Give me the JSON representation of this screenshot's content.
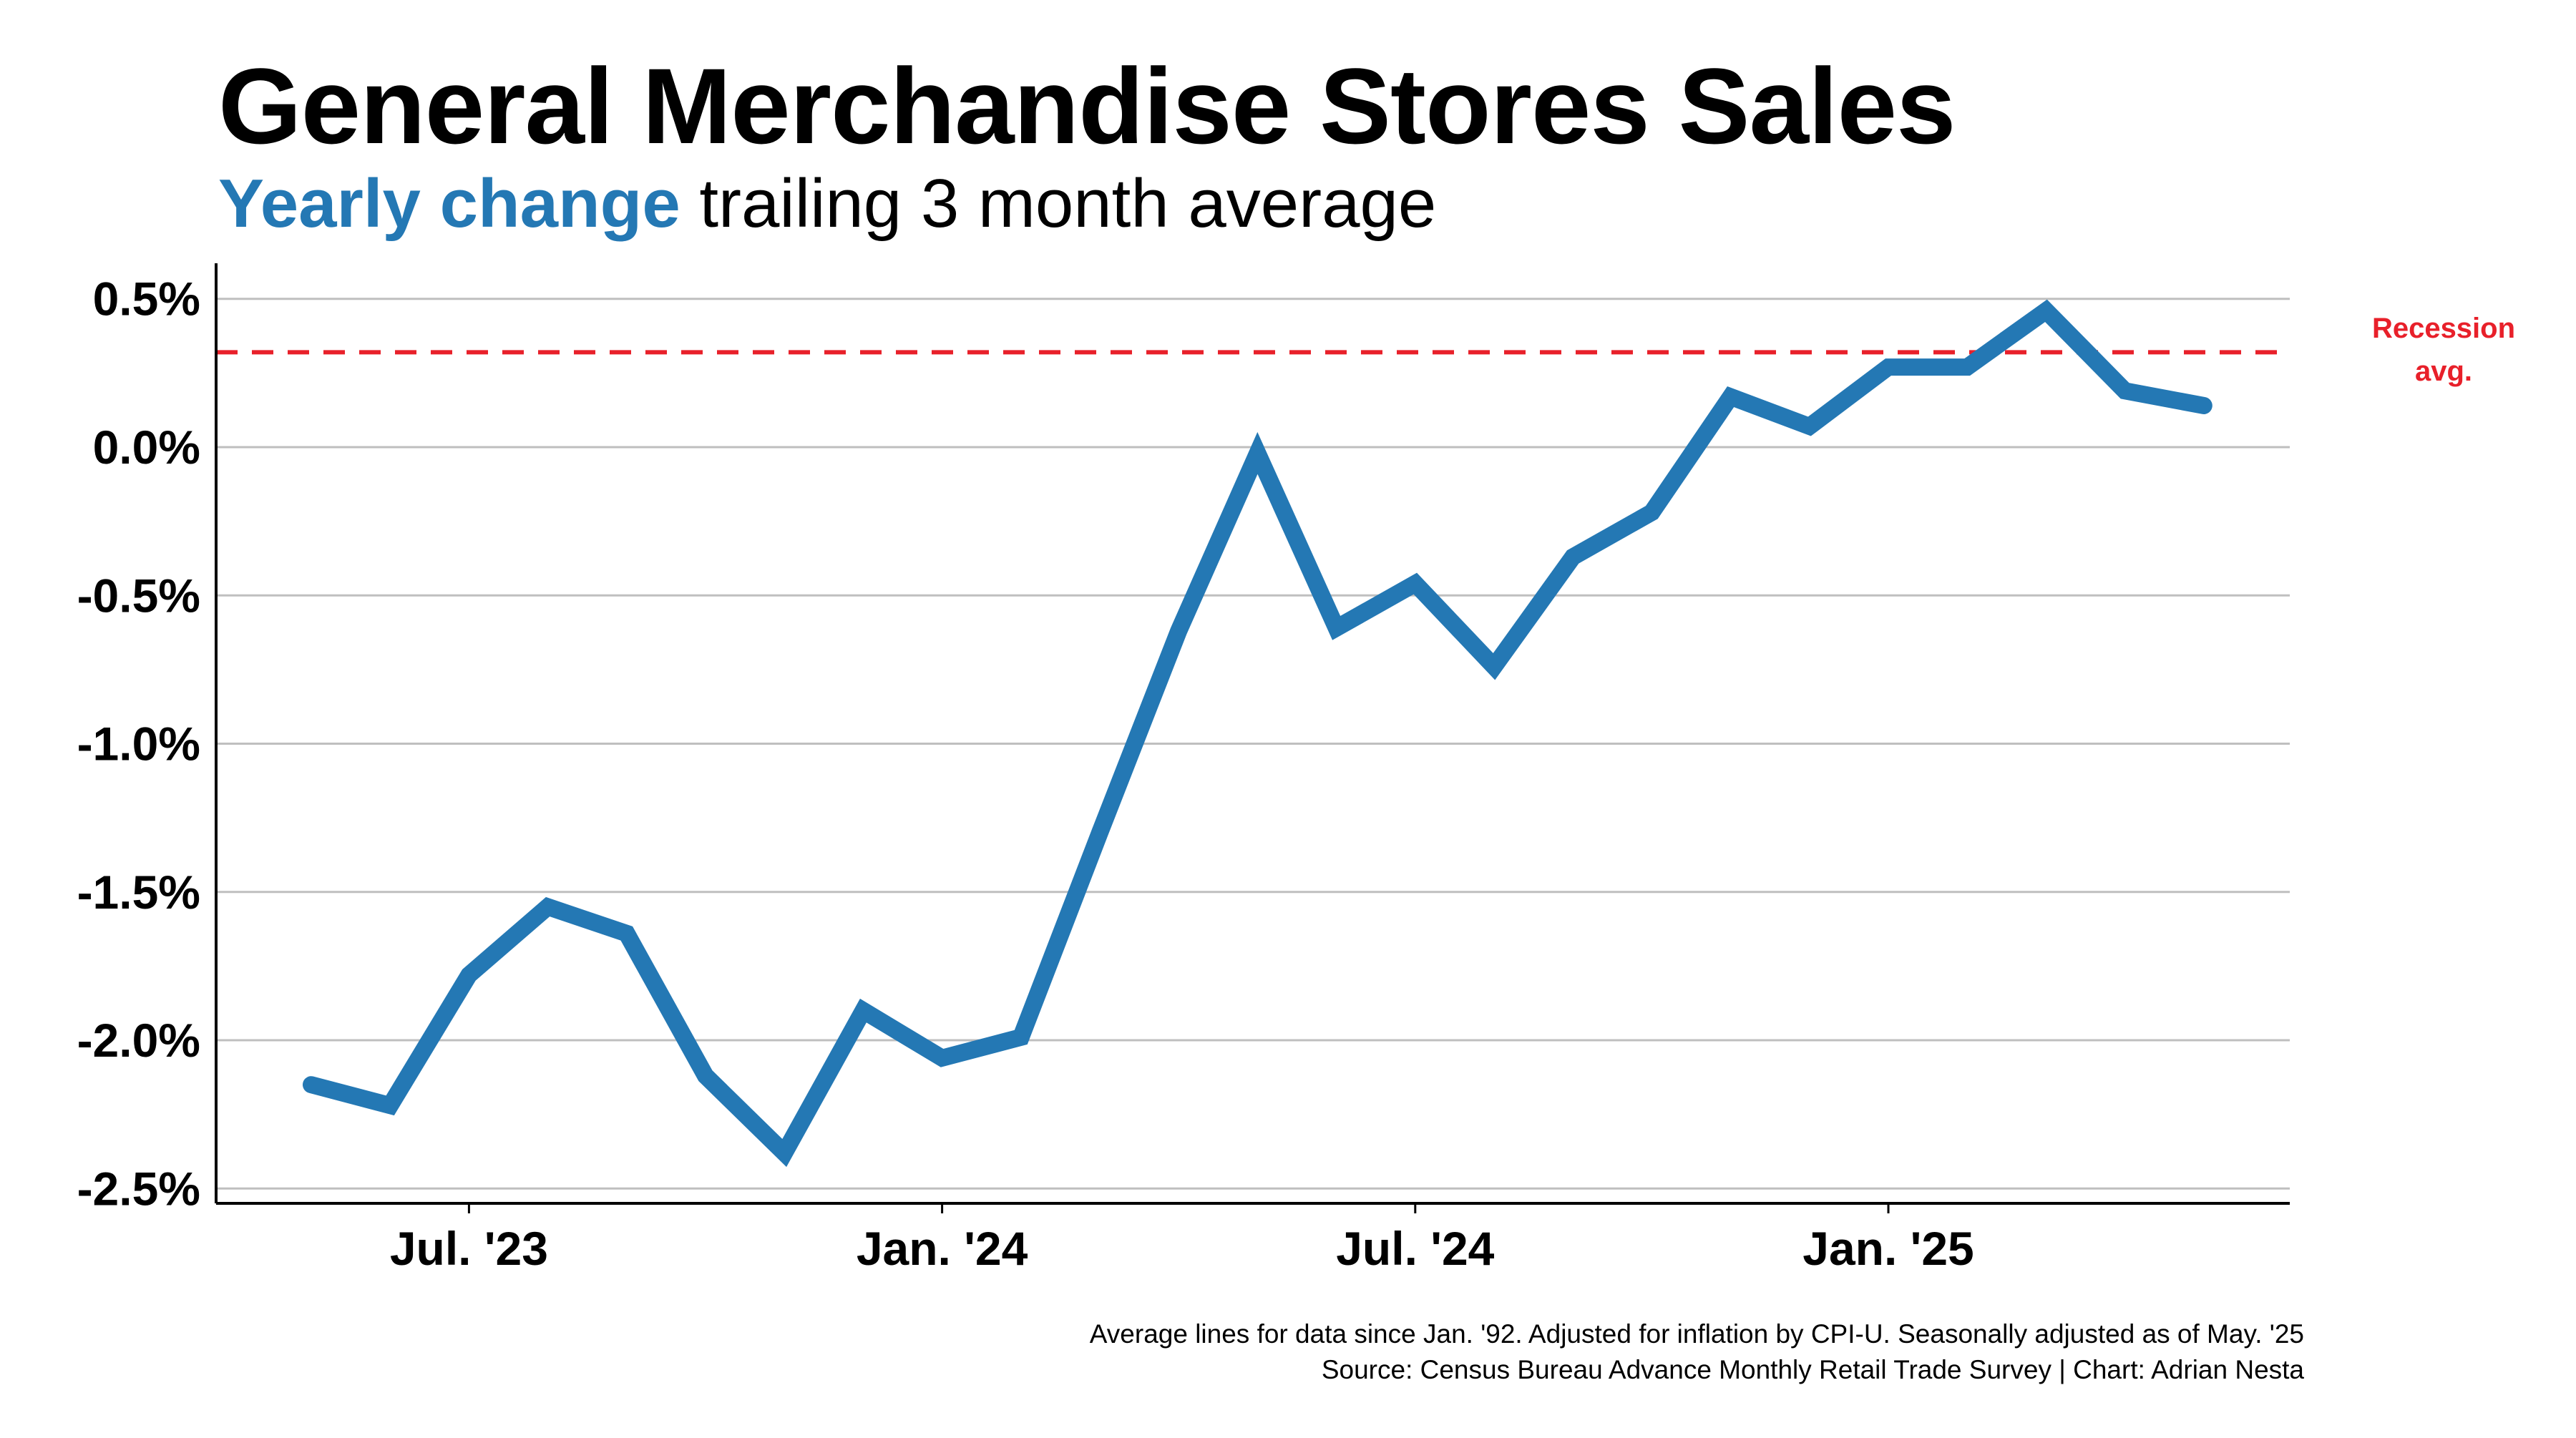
{
  "title": "General Merchandise Stores Sales",
  "subtitle": {
    "highlight": "Yearly change",
    "rest": " trailing 3 month average"
  },
  "colors": {
    "series": "#2478b4",
    "reference": "#e8202a",
    "grid": "#bfbfbf",
    "axis": "#000000"
  },
  "caption": {
    "line1": "Average lines for data since Jan. '92. Adjusted for inflation by CPI-U. Seasonally adjusted as of May. '25",
    "line2": "Source: Census Bureau Advance Monthly Retail Trade Survey | Chart: Adrian Nesta"
  },
  "chart_data": {
    "type": "line",
    "title": "General Merchandise Stores Sales",
    "subtitle": "Yearly change trailing 3 month average",
    "x": [
      "2023-05",
      "2023-06",
      "2023-07",
      "2023-08",
      "2023-09",
      "2023-10",
      "2023-11",
      "2023-12",
      "2024-01",
      "2024-02",
      "2024-03",
      "2024-04",
      "2024-05",
      "2024-06",
      "2024-07",
      "2024-08",
      "2024-09",
      "2024-10",
      "2024-11",
      "2024-12",
      "2025-01",
      "2025-02",
      "2025-03",
      "2025-04",
      "2025-05"
    ],
    "series": [
      {
        "values": [
          -2.15,
          -2.22,
          -1.78,
          -1.55,
          -1.64,
          -2.12,
          -2.38,
          -1.9,
          -2.06,
          -1.99,
          -1.3,
          -0.62,
          -0.02,
          -0.61,
          -0.46,
          -0.74,
          -0.37,
          -0.22,
          0.17,
          0.07,
          0.27,
          0.27,
          0.46,
          0.19,
          0.14
        ]
      }
    ],
    "reference_line": {
      "value": 0.32,
      "label_line1": "Recession",
      "label_line2": "avg."
    },
    "ylim": [
      -2.55,
      0.62
    ],
    "y_ticks": [
      0.5,
      0.0,
      -0.5,
      -1.0,
      -1.5,
      -2.0,
      -2.5
    ],
    "y_tick_labels": [
      "0.5%",
      "0.0%",
      "-0.5%",
      "-1.0%",
      "-1.5%",
      "-2.0%",
      "-2.5%"
    ],
    "x_ticks": [
      "2023-07",
      "2024-01",
      "2024-07",
      "2025-01"
    ],
    "x_tick_labels": [
      "Jul. '23",
      "Jan. '24",
      "Jul. '24",
      "Jan. '25"
    ],
    "grid": true,
    "xlabel": "",
    "ylabel": ""
  }
}
